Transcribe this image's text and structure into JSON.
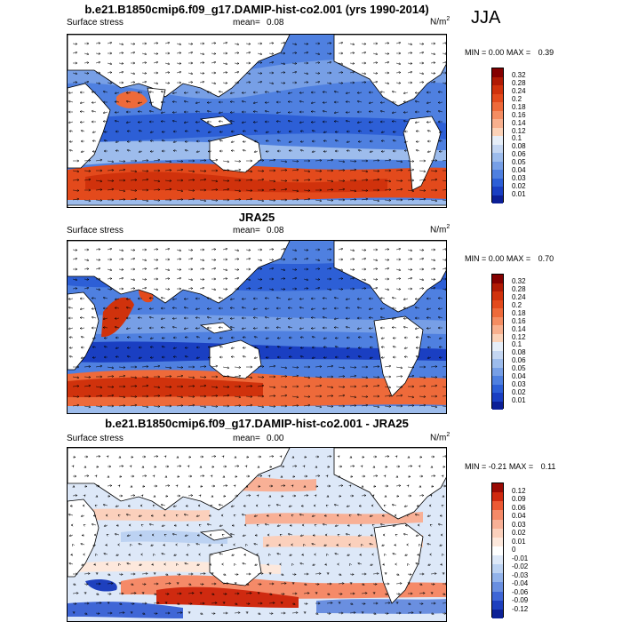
{
  "season": "JJA",
  "panels": [
    {
      "title": "b.e21.B1850cmip6.f09_g17.DAMIP-hist-co2.001 (yrs 1990-2014)",
      "left_label": "Surface stress",
      "mean_label": "mean=",
      "mean_value": "0.08",
      "units": "N/m",
      "units_sup": "2",
      "min_label": "MIN =",
      "min_value": "0.00",
      "max_label": "MAX =",
      "max_value": "0.39",
      "levels": [
        "0.32",
        "0.28",
        "0.24",
        "0.2",
        "0.18",
        "0.16",
        "0.14",
        "0.12",
        "0.1",
        "0.08",
        "0.06",
        "0.05",
        "0.04",
        "0.03",
        "0.02",
        "0.01"
      ]
    },
    {
      "title": "JRA25",
      "left_label": "Surface stress",
      "mean_label": "mean=",
      "mean_value": "0.08",
      "units": "N/m",
      "units_sup": "2",
      "min_label": "MIN =",
      "min_value": "0.00",
      "max_label": "MAX =",
      "max_value": "0.70",
      "levels": [
        "0.32",
        "0.28",
        "0.24",
        "0.2",
        "0.18",
        "0.16",
        "0.14",
        "0.12",
        "0.1",
        "0.08",
        "0.06",
        "0.05",
        "0.04",
        "0.03",
        "0.02",
        "0.01"
      ]
    },
    {
      "title": "b.e21.B1850cmip6.f09_g17.DAMIP-hist-co2.001 - JRA25",
      "left_label": "Surface stress",
      "mean_label": "mean=",
      "mean_value": "0.00",
      "units": "N/m",
      "units_sup": "2",
      "min_label": "MIN =",
      "min_value": "-0.21",
      "max_label": "MAX =",
      "max_value": "0.11",
      "levels": [
        "0.12",
        "0.09",
        "0.06",
        "0.04",
        "0.03",
        "0.02",
        "0.01",
        "0",
        "-0.01",
        "-0.02",
        "-0.03",
        "-0.04",
        "-0.06",
        "-0.09",
        "-0.12"
      ]
    }
  ],
  "colors": {
    "seq": [
      "#840000",
      "#b01a04",
      "#d0320c",
      "#e34a1c",
      "#ee6a3a",
      "#f48d62",
      "#f8b08e",
      "#fbd2b8",
      "#e6eef8",
      "#c4d6f2",
      "#9dbcec",
      "#779fe6",
      "#4f80e0",
      "#2d5fd6",
      "#1a3fc2",
      "#0c1f96"
    ],
    "div": [
      "#9a0a04",
      "#cf2a10",
      "#ec5a34",
      "#f58a68",
      "#f8b096",
      "#fbd0bc",
      "#fde8dc",
      "#ffffff",
      "#dde8f8",
      "#bcd2f2",
      "#93b3ea",
      "#6a8fe0",
      "#3f66d6",
      "#1e40be",
      "#0c2196"
    ],
    "land": "#ffffff",
    "coast": "#000000"
  }
}
